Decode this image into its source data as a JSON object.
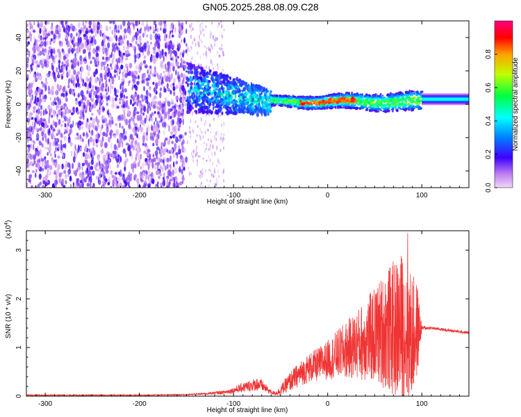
{
  "title": "GN05.2025.288.08.09.C28",
  "colors": {
    "spectrogram_low": "#7b00e6",
    "spectrogram_high": "#ff0000",
    "snr_line": "#f03434",
    "axis": "#000000"
  },
  "chart_data": [
    {
      "type": "heatmap",
      "title": "GN05.2025.288.08.09.C28",
      "xlabel": "Height of straight line (km)",
      "ylabel": "Frequency (Hz)",
      "xlim": [
        -320,
        150
      ],
      "ylim": [
        -50,
        50
      ],
      "xticks": [
        -300,
        -200,
        -100,
        0,
        100
      ],
      "xtick_labels": [
        "-300",
        "-200",
        "-100",
        "0",
        "100"
      ],
      "yticks": [
        -40,
        -20,
        0,
        20,
        40
      ],
      "ytick_labels": [
        "-40",
        "-20",
        "0",
        "20",
        "40"
      ],
      "colorbar": {
        "label": "Normalized spectral amplitude",
        "range": [
          0,
          1
        ],
        "ticks": [
          0.0,
          0.2,
          0.4,
          0.6,
          0.8
        ],
        "tick_labels": [
          "0.0",
          "0.2",
          "0.4",
          "0.6",
          "0.8"
        ]
      },
      "regions": [
        {
          "name": "noise",
          "x_range": [
            -320,
            -150
          ],
          "freq_range": [
            -50,
            50
          ],
          "amplitude": 0.15
        },
        {
          "name": "transition",
          "x_range": [
            -150,
            -60
          ],
          "freq_center": 5,
          "freq_spread": 15,
          "amplitude": 0.3
        },
        {
          "name": "ridge",
          "x_range": [
            -60,
            100
          ],
          "freq_center": 2,
          "freq_spread": 3,
          "amplitude": 0.8
        },
        {
          "name": "steady",
          "x_range": [
            100,
            150
          ],
          "freq_center": 3,
          "freq_spread": 2,
          "amplitude": 0.45
        }
      ]
    },
    {
      "type": "line",
      "xlabel": "Height of straight line (km)",
      "ylabel": "SNR (10 * v/v)",
      "y_multiplier": "(x10^4)",
      "y_multiplier_base": "(x10",
      "y_multiplier_exp": "4",
      "y_multiplier_close": ")",
      "xlim": [
        -320,
        150
      ],
      "ylim": [
        0,
        3.4
      ],
      "xticks": [
        -300,
        -200,
        -100,
        0,
        100
      ],
      "xtick_labels": [
        "-300",
        "-200",
        "-100",
        "0",
        "100"
      ],
      "yticks": [
        0,
        1,
        2,
        3
      ],
      "ytick_labels": [
        "0",
        "1",
        "2",
        "3"
      ],
      "series": [
        {
          "name": "SNR",
          "envelope": {
            "x": [
              -320,
              -200,
              -150,
              -130,
              -110,
              -100,
              -90,
              -80,
              -75,
              -70,
              -65,
              -60,
              -55,
              -50,
              -40,
              -30,
              -20,
              -10,
              0,
              10,
              20,
              30,
              40,
              50,
              60,
              70,
              80,
              88,
              95,
              100,
              110,
              130,
              150
            ],
            "mean": [
              0.02,
              0.02,
              0.03,
              0.05,
              0.08,
              0.12,
              0.18,
              0.22,
              0.25,
              0.22,
              0.15,
              0.08,
              0.06,
              0.12,
              0.3,
              0.45,
              0.58,
              0.65,
              0.75,
              0.85,
              0.95,
              1.05,
              1.15,
              1.25,
              1.35,
              1.38,
              1.4,
              1.2,
              1.35,
              1.4,
              1.4,
              1.35,
              1.3
            ],
            "amp": [
              0.01,
              0.01,
              0.01,
              0.02,
              0.04,
              0.06,
              0.1,
              0.12,
              0.14,
              0.12,
              0.08,
              0.04,
              0.04,
              0.1,
              0.2,
              0.25,
              0.3,
              0.35,
              0.4,
              0.5,
              0.6,
              0.7,
              0.85,
              1.0,
              1.2,
              1.4,
              1.6,
              1.4,
              1.0,
              0.05,
              0.03,
              0.03,
              0.03
            ]
          },
          "peak_value": 3.35,
          "peak_x": 85
        }
      ]
    }
  ]
}
